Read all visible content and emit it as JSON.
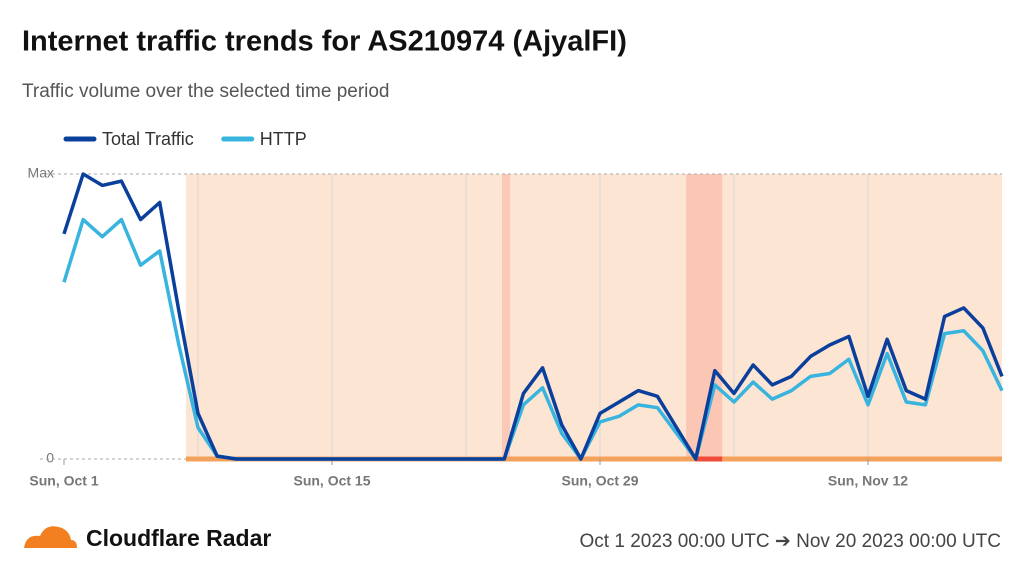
{
  "chart_data": {
    "type": "line",
    "title": "Internet traffic trends for AS210974 (AjyalFI)",
    "subtitle": "Traffic volume over the selected time period",
    "categories": [
      "Sun, Oct 1",
      null,
      null,
      null,
      null,
      null,
      null,
      null,
      null,
      null,
      null,
      null,
      null,
      null,
      "Sun, Oct 15",
      null,
      null,
      null,
      null,
      null,
      null,
      null,
      null,
      null,
      null,
      null,
      null,
      null,
      "Sun, Oct 29",
      null,
      null,
      null,
      null,
      null,
      null,
      null,
      null,
      null,
      null,
      null,
      null,
      null,
      "Sun, Nov 12",
      null,
      null,
      null,
      null,
      null,
      null,
      null
    ],
    "xlim": [
      0,
      49
    ],
    "xgrid": [
      7,
      14,
      21,
      28,
      35,
      42
    ],
    "ylim": [
      0,
      1
    ],
    "yticks": [
      0,
      {
        "value": 1,
        "label": "Max"
      }
    ],
    "series": [
      {
        "name": "Total Traffic",
        "color": "#0b3f9c",
        "values": [
          0.79,
          1.0,
          0.96,
          0.975,
          0.84,
          0.9,
          0.52,
          0.16,
          0.01,
          0,
          0,
          0,
          0,
          0,
          0,
          0,
          0,
          0,
          0,
          0,
          0,
          0,
          0,
          0,
          0.23,
          0.32,
          0.12,
          0,
          0.16,
          0.2,
          0.24,
          0.22,
          0.11,
          0,
          0.31,
          0.23,
          0.33,
          0.26,
          0.29,
          0.36,
          0.4,
          0.43,
          0.22,
          0.42,
          0.24,
          0.21,
          0.5,
          0.53,
          0.46,
          0.29
        ]
      },
      {
        "name": "HTTP",
        "color": "#38b4de",
        "values": [
          0.62,
          0.84,
          0.78,
          0.84,
          0.68,
          0.73,
          0.4,
          0.11,
          0.01,
          0,
          0,
          0,
          0,
          0,
          0,
          0,
          0,
          0,
          0,
          0,
          0,
          0,
          0,
          0,
          0.19,
          0.25,
          0.09,
          0,
          0.13,
          0.15,
          0.19,
          0.18,
          0.09,
          0,
          0.26,
          0.2,
          0.27,
          0.21,
          0.24,
          0.29,
          0.3,
          0.35,
          0.19,
          0.37,
          0.2,
          0.19,
          0.44,
          0.45,
          0.38,
          0.24
        ]
      }
    ],
    "regions": [
      {
        "from": 6.37,
        "to": 49,
        "fill": "#fde5d3",
        "bar": "#f4a15c"
      },
      {
        "from": 22.88,
        "to": 23.3,
        "fill": "#fbc9b7",
        "bar": "#f4a15c"
      },
      {
        "from": 32.5,
        "to": 34.38,
        "fill": "#fbc6b3",
        "bar": "#f4a15c"
      },
      {
        "from": 33.0,
        "to": 34.38,
        "fill": "#fbc6b3",
        "bar": "#ef4a3a"
      }
    ],
    "brand": "Cloudflare Radar",
    "date_range": "Oct 1 2023 00:00 UTC ➔ Nov 20 2023 00:00 UTC"
  }
}
